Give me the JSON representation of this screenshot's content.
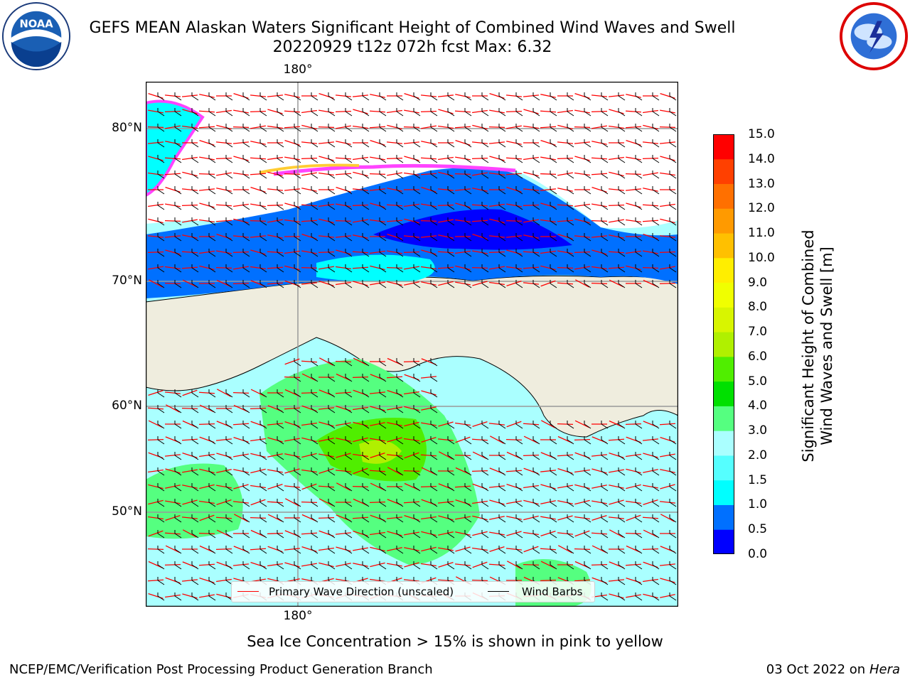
{
  "header": {
    "title_line1": "GEFS MEAN Alaskan Waters Significant Height of Combined Wind Waves and Swell",
    "title_line2": "20220929 t12z 072h fcst   Max: 6.32"
  },
  "logos": {
    "noaa": {
      "name": "noaa-logo",
      "text": "NOAA"
    },
    "nws": {
      "name": "nws-logo"
    }
  },
  "map": {
    "lat_labels": [
      "80°N",
      "70°N",
      "60°N",
      "50°N"
    ],
    "lon_label_top": "180°",
    "lon_label_bottom": "180°"
  },
  "colors": {
    "ocean_calm": "#aaffff",
    "land": "#efedde",
    "frame": "#000000",
    "wave_arrow": "#ff0000",
    "wind_barb": "#000000"
  },
  "colorbar": {
    "label_line1": "Significant Height of Combined",
    "label_line2": "Wind Waves and Swell [m]",
    "ticks": [
      "15.0",
      "14.0",
      "13.0",
      "12.0",
      "11.0",
      "10.0",
      "9.0",
      "8.0",
      "7.0",
      "6.0",
      "5.0",
      "4.0",
      "3.0",
      "2.0",
      "1.5",
      "1.0",
      "0.5",
      "0.0"
    ],
    "colors_bottom_to_top": [
      "#0000ff",
      "#0070ff",
      "#00ffff",
      "#55ffff",
      "#aaffff",
      "#55ff80",
      "#00e000",
      "#50ee00",
      "#b0f000",
      "#d8f500",
      "#f0ff00",
      "#ffee00",
      "#ffc000",
      "#ff9a00",
      "#ff7000",
      "#ff4000",
      "#ff0000"
    ]
  },
  "legend": {
    "wave_label": "Primary Wave Direction (unscaled)",
    "wind_label": "Wind Barbs"
  },
  "footer": {
    "note": "Sea Ice Concentration > 15% is shown in pink to yellow",
    "credit": "NCEP/EMC/Verification Post Processing Product Generation Branch",
    "date_prefix": "03 Oct 2022 on ",
    "host": "Hera"
  }
}
